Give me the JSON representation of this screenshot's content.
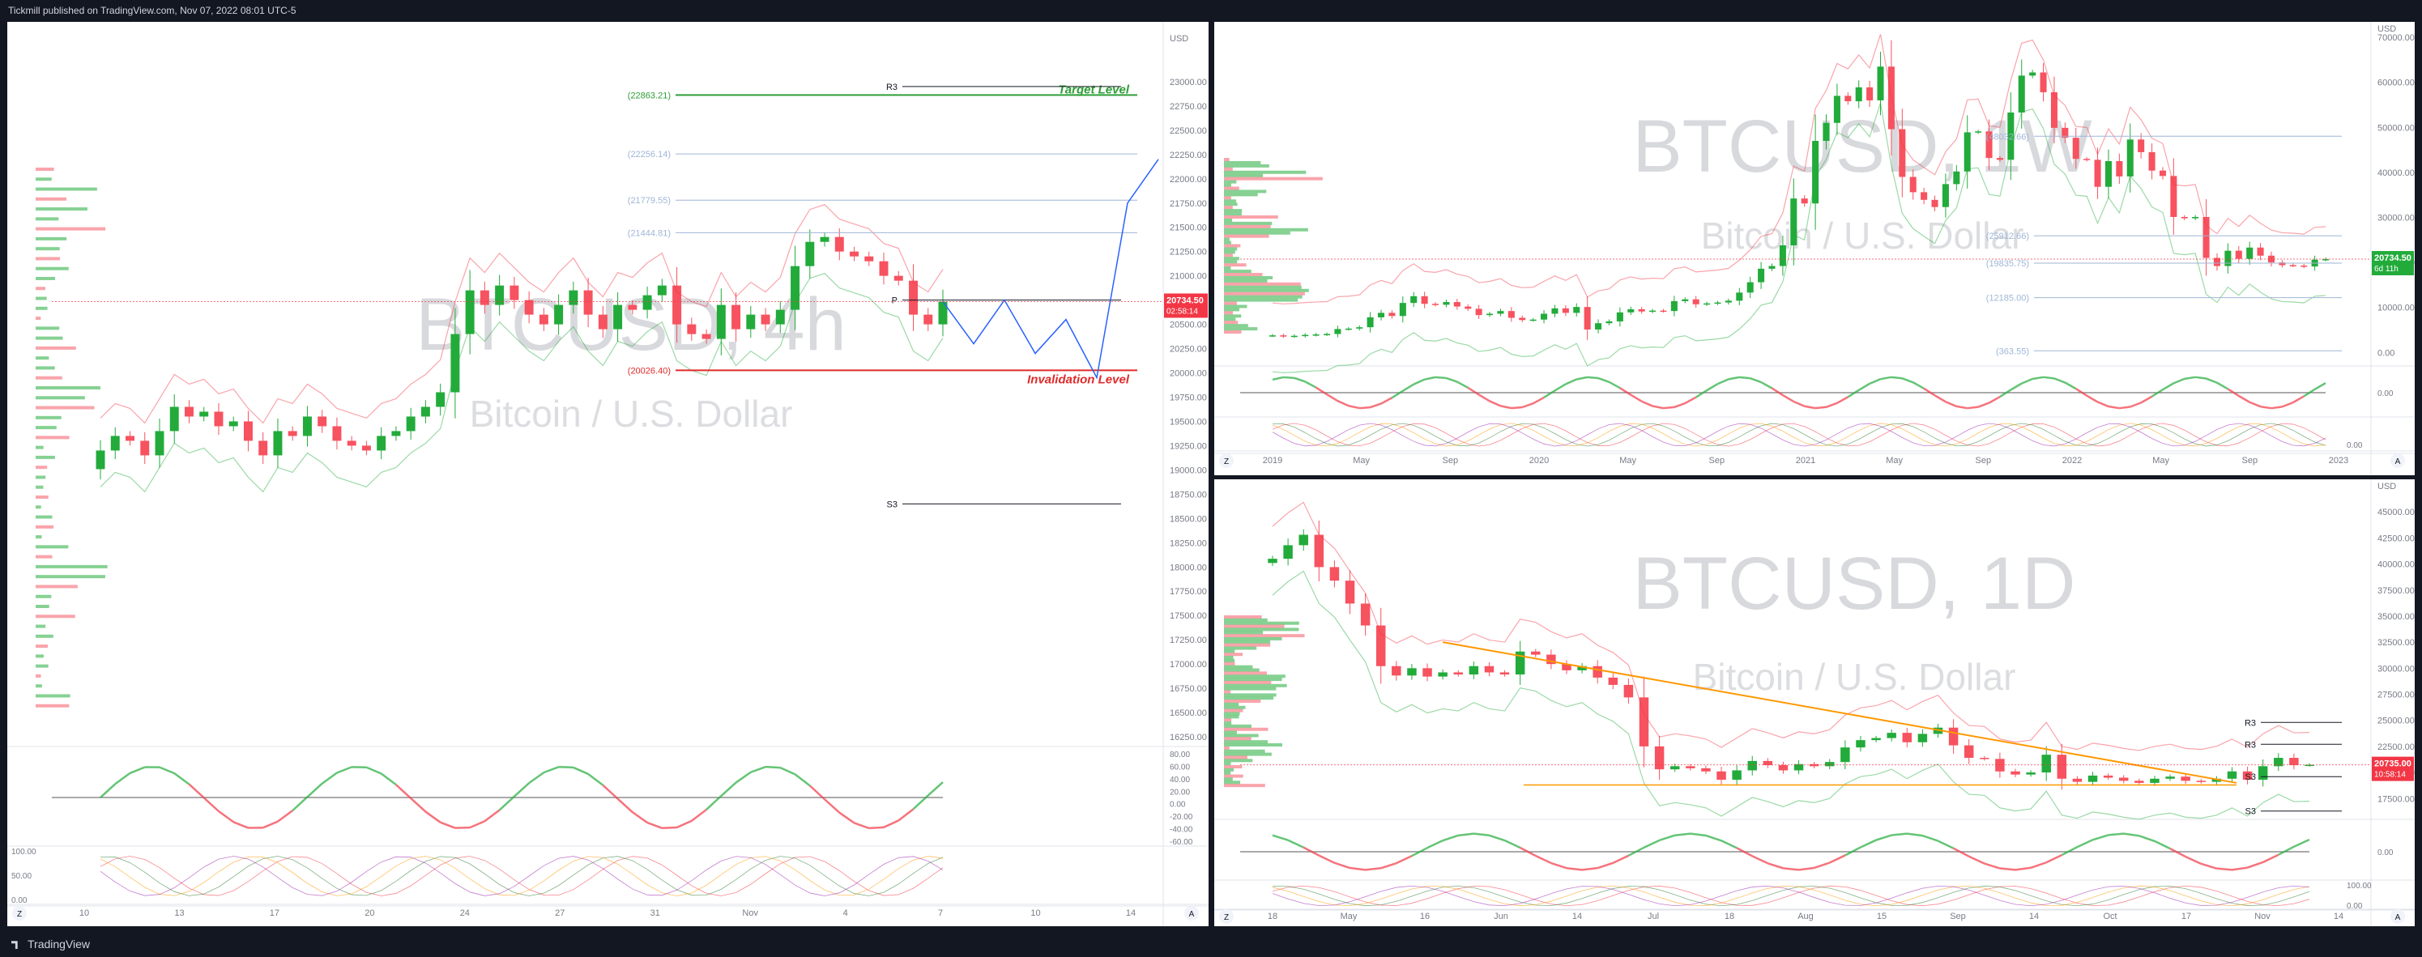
{
  "header": {
    "published": "Tickmill published on TradingView.com, Nov 07, 2022 08:01 UTC-5"
  },
  "footer": {
    "brand": "TradingView"
  },
  "colors": {
    "up": "#089981",
    "down": "#f23645",
    "green_candle": "#22ab3a",
    "red_candle": "#f7525f",
    "target": "#2e9e36",
    "invalidation": "#e02a2a",
    "projection": "#2962ff",
    "orange": "#ff9800",
    "violet": "#9c27b0"
  },
  "chart_data": [
    {
      "type": "candlestick",
      "title": "BTCUSD, 4h",
      "subtitle": "Bitcoin / U.S. Dollar",
      "currency": "USD",
      "last_price": "20734.50",
      "countdown": "02:58:14",
      "y_ticks": [
        "23000.00",
        "22750.00",
        "22500.00",
        "22250.00",
        "22000.00",
        "21750.00",
        "21500.00",
        "21250.00",
        "21000.00",
        "20750.00",
        "20500.00",
        "20250.00",
        "20000.00",
        "19750.00",
        "19500.00",
        "19250.00",
        "19000.00",
        "18750.00",
        "18500.00",
        "18250.00",
        "18000.00",
        "17750.00",
        "17500.00",
        "17250.00",
        "17000.00",
        "16750.00",
        "16500.00",
        "16250.00"
      ],
      "ylim": [
        16150,
        23450
      ],
      "x_ticks": [
        "10",
        "13",
        "17",
        "20",
        "24",
        "27",
        "31",
        "Nov",
        "4",
        "7",
        "10",
        "14"
      ],
      "levels": [
        {
          "label": "(22863.21)",
          "value": 22863.21,
          "tag": "Target Level"
        },
        {
          "label": "(22256.14)",
          "value": 22256.14
        },
        {
          "label": "(21779.55)",
          "value": 21779.55
        },
        {
          "label": "(21444.81)",
          "value": 21444.81
        },
        {
          "label": "(20026.40)",
          "value": 20026.4,
          "tag": "Invalidation Level"
        }
      ],
      "pivots": [
        {
          "label": "R3",
          "value": 22950
        },
        {
          "label": "P",
          "value": 20750
        },
        {
          "label": "S3",
          "value": 18650
        }
      ],
      "close": [
        19200,
        19350,
        19300,
        19150,
        19400,
        19650,
        19550,
        19600,
        19450,
        19500,
        19300,
        19150,
        19400,
        19350,
        19550,
        19450,
        19300,
        19250,
        19200,
        19350,
        19400,
        19550,
        19650,
        19800,
        20400,
        20850,
        20700,
        20900,
        20750,
        20600,
        20500,
        20700,
        20850,
        20600,
        20450,
        20700,
        20650,
        20800,
        20900,
        20500,
        20400,
        20350,
        20700,
        20450,
        20600,
        20500,
        20650,
        21100,
        21350,
        21400,
        21250,
        21200,
        21150,
        21000,
        20950,
        20600,
        20500,
        20734.5
      ],
      "projection": [
        20734.5,
        20300,
        20750,
        20200,
        20550,
        19950,
        21750,
        22200
      ],
      "oscillator": {
        "ticks": [
          "80.00",
          "60.00",
          "40.00",
          "20.00",
          "0.00",
          "-20.00",
          "-40.00",
          "-60.00"
        ],
        "stoch_ticks": [
          "100.00",
          "50.00",
          "0.00"
        ]
      }
    },
    {
      "type": "candlestick",
      "title": "BTCUSD, 1W",
      "subtitle": "Bitcoin / U.S. Dollar",
      "currency": "USD",
      "last_price": "20734.50",
      "countdown": "6d 11h",
      "y_ticks": [
        "70000.00",
        "60000.00",
        "50000.00",
        "40000.00",
        "30000.00",
        "20000.00",
        "10000.00",
        "0.00"
      ],
      "ylim": [
        -3000,
        72000
      ],
      "x_ticks": [
        "2019",
        "May",
        "Sep",
        "2020",
        "May",
        "Sep",
        "2021",
        "May",
        "Sep",
        "2022",
        "May",
        "Sep",
        "2023"
      ],
      "levels": [
        {
          "label": "(48032.66)",
          "value": 48032.66
        },
        {
          "label": "(25912.66)",
          "value": 25912.66
        },
        {
          "label": "(19835.75)",
          "value": 19835.75
        },
        {
          "label": "(12185.00)",
          "value": 12185.0
        },
        {
          "label": "(363.55)",
          "value": 363.55
        }
      ],
      "close": [
        3800,
        3600,
        3700,
        3900,
        4000,
        4100,
        5200,
        5300,
        5600,
        7800,
        8800,
        8100,
        11000,
        12500,
        10800,
        10600,
        11200,
        10200,
        9700,
        8300,
        8600,
        9200,
        7700,
        7200,
        7300,
        8600,
        9800,
        8800,
        10100,
        5100,
        6500,
        6900,
        8900,
        9600,
        9100,
        9300,
        9200,
        11400,
        11800,
        10700,
        10900,
        11100,
        11500,
        13300,
        15600,
        18600,
        19200,
        23800,
        34200,
        33100,
        47000,
        51000,
        57000,
        55800,
        58900,
        56000,
        63500,
        49600,
        39000,
        35600,
        33900,
        32300,
        37400,
        40200,
        48900,
        49100,
        43200,
        42800,
        53300,
        61500,
        62200,
        57800,
        49900,
        47700,
        43000,
        42800,
        36800,
        42500,
        39100,
        47300,
        44500,
        40400,
        39200,
        30100,
        29800,
        30100,
        21000,
        19200,
        22600,
        20800,
        23300,
        21500,
        20000,
        19400,
        19300,
        19100,
        20600,
        20734.5
      ],
      "oscillator": {
        "ticks": [
          "0.00"
        ],
        "stoch_ticks": [
          "0.00"
        ]
      }
    },
    {
      "type": "candlestick",
      "title": "BTCUSD, 1D",
      "subtitle": "Bitcoin / U.S. Dollar",
      "currency": "USD",
      "last_price": "20735.00",
      "countdown": "10:58:14",
      "y_ticks": [
        "45000.00",
        "42500.00",
        "40000.00",
        "37500.00",
        "35000.00",
        "32500.00",
        "30000.00",
        "27500.00",
        "25000.00",
        "22500.00",
        "20000.00",
        "17500.00"
      ],
      "ylim": [
        15500,
        47500
      ],
      "x_ticks": [
        "18",
        "May",
        "16",
        "Jun",
        "14",
        "Jul",
        "18",
        "Aug",
        "15",
        "Sep",
        "14",
        "Oct",
        "17",
        "Nov",
        "14"
      ],
      "pivots": [
        {
          "label": "R3",
          "value": 24800
        },
        {
          "label": "R3",
          "value": 22700
        },
        {
          "label": "S3",
          "value": 19600
        },
        {
          "label": "S3",
          "value": 16300
        }
      ],
      "close": [
        40500,
        41800,
        42800,
        39700,
        38400,
        36200,
        34100,
        30200,
        29300,
        30000,
        29200,
        29600,
        29400,
        30200,
        29600,
        29400,
        31600,
        31300,
        30400,
        29800,
        30200,
        29100,
        28400,
        27200,
        22500,
        20300,
        20600,
        20400,
        20100,
        19300,
        20200,
        21100,
        20700,
        20200,
        20800,
        20600,
        21000,
        22400,
        23100,
        23300,
        23800,
        22900,
        23700,
        24300,
        22600,
        21400,
        21300,
        20100,
        19800,
        20000,
        21700,
        19400,
        19100,
        19700,
        19500,
        19200,
        19000,
        19400,
        19600,
        19200,
        19100,
        19400,
        20100,
        19300,
        20600,
        21400,
        20700,
        20734.5
      ],
      "oscillator": {
        "ticks": [
          "0.00"
        ],
        "stoch_ticks": [
          "100.00",
          "0.00"
        ]
      }
    }
  ]
}
